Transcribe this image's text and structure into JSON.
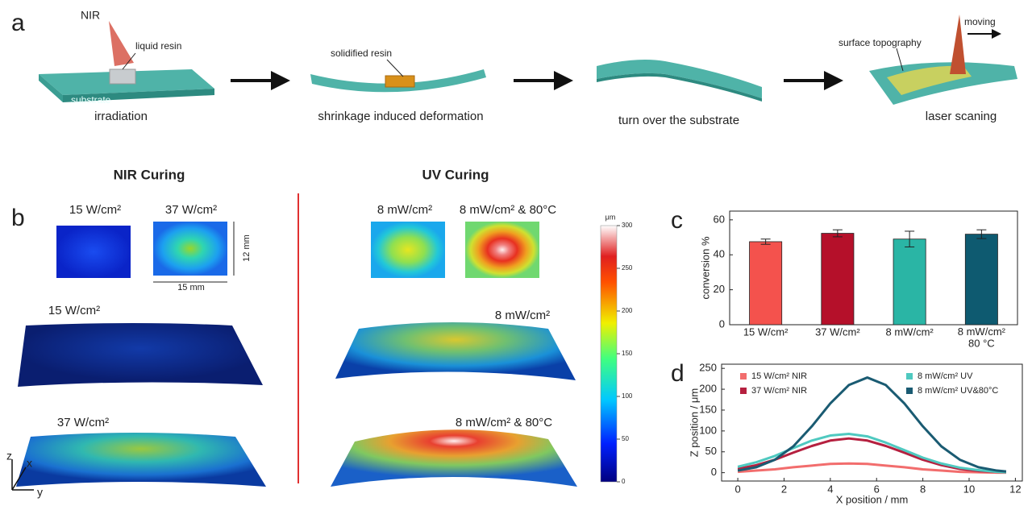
{
  "panel_labels": [
    "a",
    "b",
    "c",
    "d"
  ],
  "schematic": {
    "nir": "NIR",
    "liquid_resin": "liquid resin",
    "substrate": "substrate",
    "solidified_resin": "solidified resin",
    "surface_topography": "surface topography",
    "moving": "moving",
    "steps": [
      "irradiation",
      "shrinkage induced deformation",
      "turn over the substrate",
      "laser scaning"
    ]
  },
  "curing": {
    "nir_title": "NIR Curing",
    "uv_title": "UV Curing",
    "top_labels": [
      "15 W/cm²",
      "37 W/cm²",
      "8 mW/cm²",
      "8 mW/cm² & 80°C"
    ],
    "height_label": "12 mm",
    "width_label": "15 mm",
    "surface_labels": [
      "15 W/cm²",
      "8 mW/cm²",
      "37 W/cm²",
      "8 mW/cm² & 80°C"
    ],
    "axes": [
      "z",
      "x",
      "y"
    ]
  },
  "colorbar": {
    "unit": "μm",
    "range": [
      0,
      300
    ],
    "ticks": [
      0,
      50,
      100,
      150,
      200,
      250,
      300
    ]
  },
  "chart_data": [
    {
      "type": "bar",
      "categories": [
        "15 W/cm²",
        "37 W/cm²",
        "8 mW/cm²",
        "8 mW/cm²\n80 °C"
      ],
      "values": [
        47.5,
        52.3,
        49,
        51.8
      ],
      "errors": [
        1.5,
        2,
        4.5,
        2.5
      ],
      "colors": [
        "#f4524d",
        "#b5102a",
        "#2ab5a5",
        "#0e5a70"
      ],
      "ylabel": "conversion %",
      "ylim": [
        0,
        65
      ],
      "yticks": [
        0,
        20,
        40,
        60
      ]
    },
    {
      "type": "line",
      "xlabel": "X position / mm",
      "ylabel": "Z position / μm",
      "x": [
        0,
        0.8,
        1.6,
        2.4,
        3.2,
        4.0,
        4.8,
        5.6,
        6.4,
        7.2,
        8.0,
        8.8,
        9.6,
        10.4,
        11.2,
        11.6
      ],
      "series": [
        {
          "name": "15 W/cm² NIR",
          "color": "#f26d6d",
          "values": [
            2,
            5,
            8,
            13,
            17,
            21,
            22,
            21,
            17,
            13,
            8,
            5,
            2,
            1,
            0,
            0
          ]
        },
        {
          "name": "37 W/cm² NIR",
          "color": "#b5203f",
          "values": [
            9,
            18,
            31,
            48,
            64,
            77,
            82,
            77,
            64,
            48,
            31,
            18,
            9,
            4,
            2,
            1
          ]
        },
        {
          "name": "8 mW/cm² UV",
          "color": "#4fc9c0",
          "values": [
            14,
            25,
            40,
            59,
            77,
            89,
            93,
            87,
            72,
            54,
            36,
            22,
            12,
            6,
            2,
            1
          ]
        },
        {
          "name": "8 mW/cm² UV&80°C",
          "color": "#1a5b72",
          "values": [
            5,
            13,
            31,
            63,
            111,
            166,
            210,
            228,
            210,
            166,
            111,
            63,
            31,
            13,
            5,
            3
          ]
        }
      ],
      "xlim": [
        -0.7,
        12.3
      ],
      "ylim": [
        -20,
        260
      ],
      "xticks": [
        0,
        2,
        4,
        6,
        8,
        10,
        12
      ],
      "yticks": [
        0,
        50,
        100,
        150,
        200,
        250
      ]
    }
  ]
}
